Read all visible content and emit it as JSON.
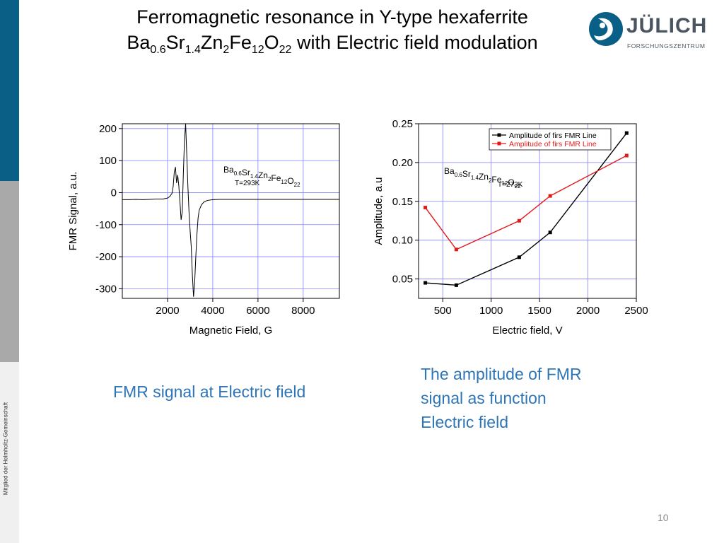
{
  "slide": {
    "title_line1": "Ferromagnetic resonance in Y-type hexaferrite",
    "formula_parts": [
      {
        "t": "Ba",
        "s": "0.6"
      },
      {
        "t": "Sr",
        "s": "1.4"
      },
      {
        "t": "Zn",
        "s": "2"
      },
      {
        "t": "Fe",
        "s": "12"
      },
      {
        "t": "O",
        "s": "22"
      }
    ],
    "title_suffix": "with Electric field modulation",
    "logo_name": "JÜLICH",
    "logo_subtitle": "FORSCHUNGSZENTRUM",
    "side_text": "Mitglied der Helmholtz-Gemeinschaft",
    "caption_left": "FMR signal at Electric field",
    "caption_right_lines": [
      "The amplitude of FMR",
      "signal as function",
      "Electric field"
    ],
    "page_number": "10",
    "colors": {
      "accent_blue": "#2e75b6",
      "side_blue": "#0a5f86",
      "grid": "#8080ff",
      "series_black": "#000000",
      "series_red": "#e31a1c"
    }
  },
  "chart_data": [
    {
      "type": "line",
      "xlabel": "Magnetic Field, G",
      "ylabel": "FMR Signal, a.u.",
      "xlim": [
        0,
        9600
      ],
      "ylim": [
        -330,
        215
      ],
      "xticks": [
        2000,
        4000,
        6000,
        8000
      ],
      "yticks": [
        200,
        100,
        0,
        -100,
        -200,
        -300
      ],
      "grid": true,
      "annotation_lines": [
        "Ba0.6Sr1.4Zn2Fe12O22",
        "T=293K"
      ],
      "series": [
        {
          "x": [
            0,
            300,
            600,
            900,
            1200,
            1500,
            1800,
            2000,
            2100,
            2200,
            2250,
            2300,
            2350,
            2400,
            2450,
            2500,
            2550,
            2600,
            2650,
            2700,
            2750,
            2800,
            2850,
            2900,
            2950,
            3000,
            3050,
            3100,
            3150,
            3200,
            3250,
            3300,
            3350,
            3400,
            3500,
            3600,
            3700,
            3800,
            4000,
            4300,
            4600,
            5000,
            5500,
            6000,
            6500,
            7000,
            7500,
            8000,
            8500,
            9000,
            9600
          ],
          "y": [
            -22,
            -22,
            -21,
            -22,
            -21,
            -20,
            -20,
            -17,
            -12,
            -2,
            20,
            65,
            80,
            30,
            55,
            20,
            -30,
            -85,
            -60,
            60,
            165,
            215,
            120,
            20,
            -60,
            -120,
            -170,
            -260,
            -325,
            -280,
            -200,
            -130,
            -80,
            -55,
            -38,
            -30,
            -26,
            -24,
            -22,
            -21,
            -21,
            -21,
            -21,
            -21,
            -21,
            -21,
            -21,
            -21,
            -21,
            -21,
            -21
          ]
        }
      ]
    },
    {
      "type": "line",
      "xlabel": "Electric field, V",
      "ylabel": "Amplitude, a.u",
      "xlim": [
        250,
        2500
      ],
      "ylim": [
        0.025,
        0.25
      ],
      "xticks": [
        500,
        1000,
        1500,
        2000,
        2500
      ],
      "yticks": [
        0.05,
        0.1,
        0.15,
        0.2,
        0.25
      ],
      "grid": true,
      "legend_position": "top-right",
      "annotation_lines": [
        "Ba0.6Sr1.4Zn2Fe12O22",
        "T=273K"
      ],
      "series": [
        {
          "name": "Amplitude of firs FMR Line",
          "color": "#000000",
          "x": [
            320,
            640,
            1290,
            1610,
            2400
          ],
          "y": [
            0.045,
            0.042,
            0.078,
            0.11,
            0.238
          ]
        },
        {
          "name": "Amplitude of firs FMR Line",
          "color": "#e31a1c",
          "x": [
            320,
            640,
            1290,
            1610,
            2400
          ],
          "y": [
            0.142,
            0.088,
            0.125,
            0.157,
            0.209
          ]
        }
      ]
    }
  ]
}
